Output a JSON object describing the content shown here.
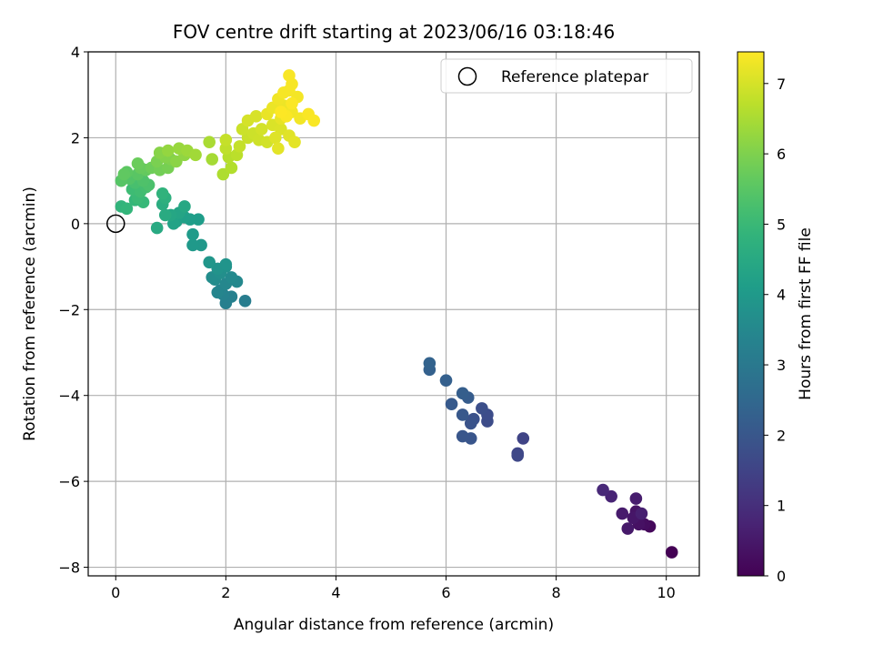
{
  "chart_data": {
    "type": "scatter",
    "title": "FOV centre drift starting at 2023/06/16 03:18:46",
    "xlabel": "Angular distance from reference (arcmin)",
    "ylabel": "Rotation from reference (arcmin)",
    "xlim": [
      -0.5,
      10.6
    ],
    "ylim": [
      -8.2,
      4.0
    ],
    "xticks": [
      0,
      2,
      4,
      6,
      8,
      10
    ],
    "yticks": [
      -8,
      -6,
      -4,
      -2,
      0,
      2,
      4
    ],
    "grid": true,
    "legend": {
      "placement": "top-right",
      "entries": [
        "Reference platepar"
      ]
    },
    "reference_point": {
      "name": "Reference platepar",
      "x": 0,
      "y": 0
    },
    "colorbar": {
      "label": "Hours from first FF file",
      "range": [
        0,
        7.45
      ],
      "ticks": [
        0,
        1,
        2,
        3,
        4,
        5,
        6,
        7
      ],
      "colormap": "viridis"
    },
    "points": [
      [
        10.1,
        -7.65,
        0.0
      ],
      [
        9.7,
        -7.05,
        0.15
      ],
      [
        9.6,
        -7.0,
        0.25
      ],
      [
        9.5,
        -6.9,
        0.3
      ],
      [
        9.45,
        -6.7,
        0.4
      ],
      [
        9.4,
        -6.85,
        0.45
      ],
      [
        9.3,
        -7.1,
        0.5
      ],
      [
        9.2,
        -6.75,
        0.55
      ],
      [
        9.45,
        -6.4,
        0.6
      ],
      [
        9.55,
        -6.75,
        0.65
      ],
      [
        9.0,
        -6.35,
        0.75
      ],
      [
        8.85,
        -6.2,
        0.85
      ],
      [
        9.5,
        -7.0,
        0.35
      ],
      [
        7.4,
        -5.0,
        1.5
      ],
      [
        7.3,
        -5.35,
        1.55
      ],
      [
        7.3,
        -5.4,
        1.6
      ],
      [
        6.75,
        -4.6,
        1.7
      ],
      [
        6.75,
        -4.45,
        1.75
      ],
      [
        6.65,
        -4.3,
        1.8
      ],
      [
        6.5,
        -4.55,
        1.85
      ],
      [
        6.45,
        -4.65,
        1.9
      ],
      [
        6.45,
        -5.0,
        1.95
      ],
      [
        6.3,
        -4.95,
        2.0
      ],
      [
        6.3,
        -4.45,
        2.05
      ],
      [
        6.1,
        -4.2,
        2.1
      ],
      [
        6.4,
        -4.05,
        2.15
      ],
      [
        6.3,
        -3.95,
        2.2
      ],
      [
        6.0,
        -3.65,
        2.25
      ],
      [
        5.7,
        -3.4,
        2.3
      ],
      [
        5.7,
        -3.25,
        2.35
      ],
      [
        2.35,
        -1.8,
        3.15
      ],
      [
        2.0,
        -1.85,
        3.2
      ],
      [
        2.1,
        -1.7,
        3.25
      ],
      [
        1.95,
        -1.65,
        3.3
      ],
      [
        1.9,
        -1.55,
        3.35
      ],
      [
        1.85,
        -1.6,
        3.4
      ],
      [
        2.0,
        -1.4,
        3.45
      ],
      [
        2.2,
        -1.35,
        3.5
      ],
      [
        2.1,
        -1.25,
        3.55
      ],
      [
        1.8,
        -1.3,
        3.6
      ],
      [
        1.75,
        -1.25,
        3.65
      ],
      [
        1.9,
        -1.15,
        3.7
      ],
      [
        2.0,
        -1.0,
        3.75
      ],
      [
        1.85,
        -1.05,
        3.8
      ],
      [
        2.0,
        -0.95,
        3.85
      ],
      [
        1.7,
        -0.9,
        3.9
      ],
      [
        1.55,
        -0.5,
        3.95
      ],
      [
        1.4,
        -0.5,
        4.0
      ],
      [
        1.4,
        -0.25,
        4.05
      ],
      [
        1.5,
        0.1,
        4.1
      ],
      [
        1.35,
        0.1,
        4.15
      ],
      [
        1.25,
        0.15,
        4.2
      ],
      [
        1.1,
        0.05,
        4.25
      ],
      [
        1.05,
        0.0,
        4.3
      ],
      [
        1.15,
        0.25,
        4.35
      ],
      [
        1.0,
        0.2,
        4.4
      ],
      [
        1.25,
        0.4,
        4.45
      ],
      [
        0.75,
        -0.1,
        4.5
      ],
      [
        0.9,
        0.2,
        4.55
      ],
      [
        0.85,
        0.45,
        4.6
      ],
      [
        0.9,
        0.6,
        4.7
      ],
      [
        0.85,
        0.7,
        4.8
      ],
      [
        0.1,
        0.4,
        4.85
      ],
      [
        0.2,
        0.35,
        4.9
      ],
      [
        0.35,
        0.55,
        4.95
      ],
      [
        0.5,
        0.5,
        5.0
      ],
      [
        0.4,
        0.6,
        5.05
      ],
      [
        0.3,
        0.8,
        5.1
      ],
      [
        0.45,
        0.75,
        5.15
      ],
      [
        0.55,
        0.85,
        5.2
      ],
      [
        0.35,
        0.95,
        5.25
      ],
      [
        0.6,
        0.9,
        5.3
      ],
      [
        0.5,
        1.0,
        5.35
      ],
      [
        0.25,
        1.05,
        5.4
      ],
      [
        0.1,
        1.0,
        5.45
      ],
      [
        0.4,
        1.15,
        5.5
      ],
      [
        0.2,
        1.2,
        5.55
      ],
      [
        0.15,
        1.15,
        5.6
      ],
      [
        0.55,
        1.25,
        5.65
      ],
      [
        0.45,
        1.3,
        5.7
      ],
      [
        0.4,
        1.4,
        5.75
      ],
      [
        0.65,
        1.3,
        5.8
      ],
      [
        0.8,
        1.25,
        5.85
      ],
      [
        0.95,
        1.3,
        5.9
      ],
      [
        0.75,
        1.45,
        5.95
      ],
      [
        1.0,
        1.5,
        6.0
      ],
      [
        0.9,
        1.55,
        6.05
      ],
      [
        0.8,
        1.65,
        6.1
      ],
      [
        1.1,
        1.45,
        6.15
      ],
      [
        1.25,
        1.6,
        6.2
      ],
      [
        0.95,
        1.7,
        6.25
      ],
      [
        1.15,
        1.75,
        6.3
      ],
      [
        1.3,
        1.7,
        6.35
      ],
      [
        1.45,
        1.6,
        6.4
      ],
      [
        1.75,
        1.5,
        6.45
      ],
      [
        1.7,
        1.9,
        6.5
      ],
      [
        1.95,
        1.15,
        6.55
      ],
      [
        2.1,
        1.3,
        6.6
      ],
      [
        2.05,
        1.55,
        6.65
      ],
      [
        2.2,
        1.6,
        6.7
      ],
      [
        2.0,
        1.75,
        6.75
      ],
      [
        2.25,
        1.8,
        6.8
      ],
      [
        2.0,
        1.95,
        6.82
      ],
      [
        2.4,
        2.0,
        6.85
      ],
      [
        2.3,
        2.2,
        6.88
      ],
      [
        2.5,
        2.1,
        6.9
      ],
      [
        2.6,
        1.95,
        6.92
      ],
      [
        2.75,
        1.9,
        6.95
      ],
      [
        2.65,
        2.2,
        6.97
      ],
      [
        2.4,
        2.4,
        7.0
      ],
      [
        2.55,
        2.5,
        7.02
      ],
      [
        2.85,
        2.3,
        7.05
      ],
      [
        3.0,
        2.2,
        7.08
      ],
      [
        2.9,
        2.0,
        7.1
      ],
      [
        3.15,
        2.05,
        7.12
      ],
      [
        2.95,
        1.75,
        7.15
      ],
      [
        3.25,
        1.9,
        7.17
      ],
      [
        3.0,
        2.45,
        7.2
      ],
      [
        2.75,
        2.55,
        7.22
      ],
      [
        2.85,
        2.7,
        7.25
      ],
      [
        3.05,
        2.75,
        7.27
      ],
      [
        2.95,
        2.9,
        7.3
      ],
      [
        3.2,
        2.6,
        7.32
      ],
      [
        3.35,
        2.45,
        7.33
      ],
      [
        3.3,
        2.95,
        7.35
      ],
      [
        3.15,
        3.1,
        7.36
      ],
      [
        3.05,
        3.05,
        7.37
      ],
      [
        3.2,
        3.25,
        7.38
      ],
      [
        3.15,
        3.45,
        7.39
      ],
      [
        3.5,
        2.55,
        7.4
      ],
      [
        3.6,
        2.4,
        7.41
      ],
      [
        3.1,
        2.5,
        7.42
      ],
      [
        3.2,
        2.8,
        7.43
      ],
      [
        3.0,
        2.6,
        7.44
      ]
    ]
  }
}
